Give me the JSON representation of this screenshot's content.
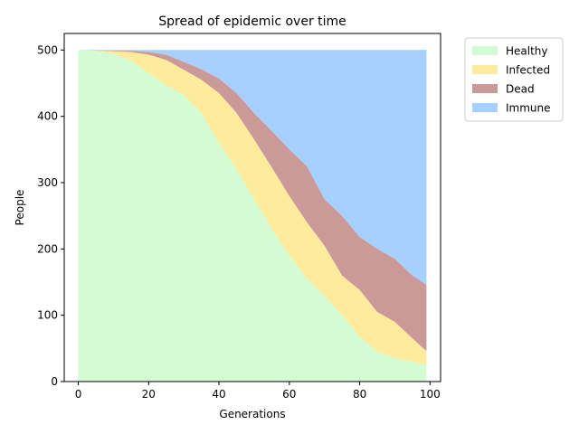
{
  "chart_data": {
    "type": "area",
    "stacked": true,
    "title": "Spread of epidemic over time",
    "xlabel": "Generations",
    "ylabel": "People",
    "xlim": [
      -4,
      103
    ],
    "ylim": [
      0,
      525
    ],
    "xticks": [
      0,
      20,
      40,
      60,
      80,
      100
    ],
    "xtick_labels": [
      "0",
      "20",
      "40",
      "60",
      "80",
      "100"
    ],
    "yticks": [
      0,
      100,
      200,
      300,
      400,
      500
    ],
    "ytick_labels": [
      "0",
      "100",
      "200",
      "300",
      "400",
      "500"
    ],
    "grid": false,
    "legend_position": "outside-top-right",
    "x": [
      0,
      5,
      10,
      15,
      20,
      25,
      30,
      35,
      40,
      45,
      50,
      55,
      60,
      65,
      70,
      75,
      80,
      85,
      90,
      95,
      99
    ],
    "series": [
      {
        "name": "Healthy",
        "color": "#d4fcd4",
        "values": [
          500,
          498,
          494,
          484,
          465,
          447,
          432,
          405,
          360,
          320,
          275,
          230,
          190,
          155,
          130,
          100,
          68,
          45,
          35,
          30,
          24
        ]
      },
      {
        "name": "Infected",
        "color": "#ffeb9c",
        "values": [
          0,
          1,
          4,
          13,
          28,
          38,
          38,
          50,
          75,
          85,
          90,
          93,
          90,
          85,
          75,
          60,
          70,
          60,
          55,
          35,
          22
        ]
      },
      {
        "name": "Dead",
        "color": "#cc9999",
        "values": [
          0,
          0,
          1,
          2,
          4,
          8,
          12,
          16,
          22,
          30,
          40,
          55,
          70,
          85,
          70,
          90,
          80,
          95,
          95,
          95,
          100
        ]
      },
      {
        "name": "Immune",
        "color": "#a6d0ff",
        "values": [
          0,
          1,
          1,
          1,
          3,
          7,
          18,
          29,
          43,
          65,
          95,
          122,
          150,
          175,
          225,
          250,
          282,
          300,
          315,
          340,
          354
        ]
      }
    ]
  }
}
